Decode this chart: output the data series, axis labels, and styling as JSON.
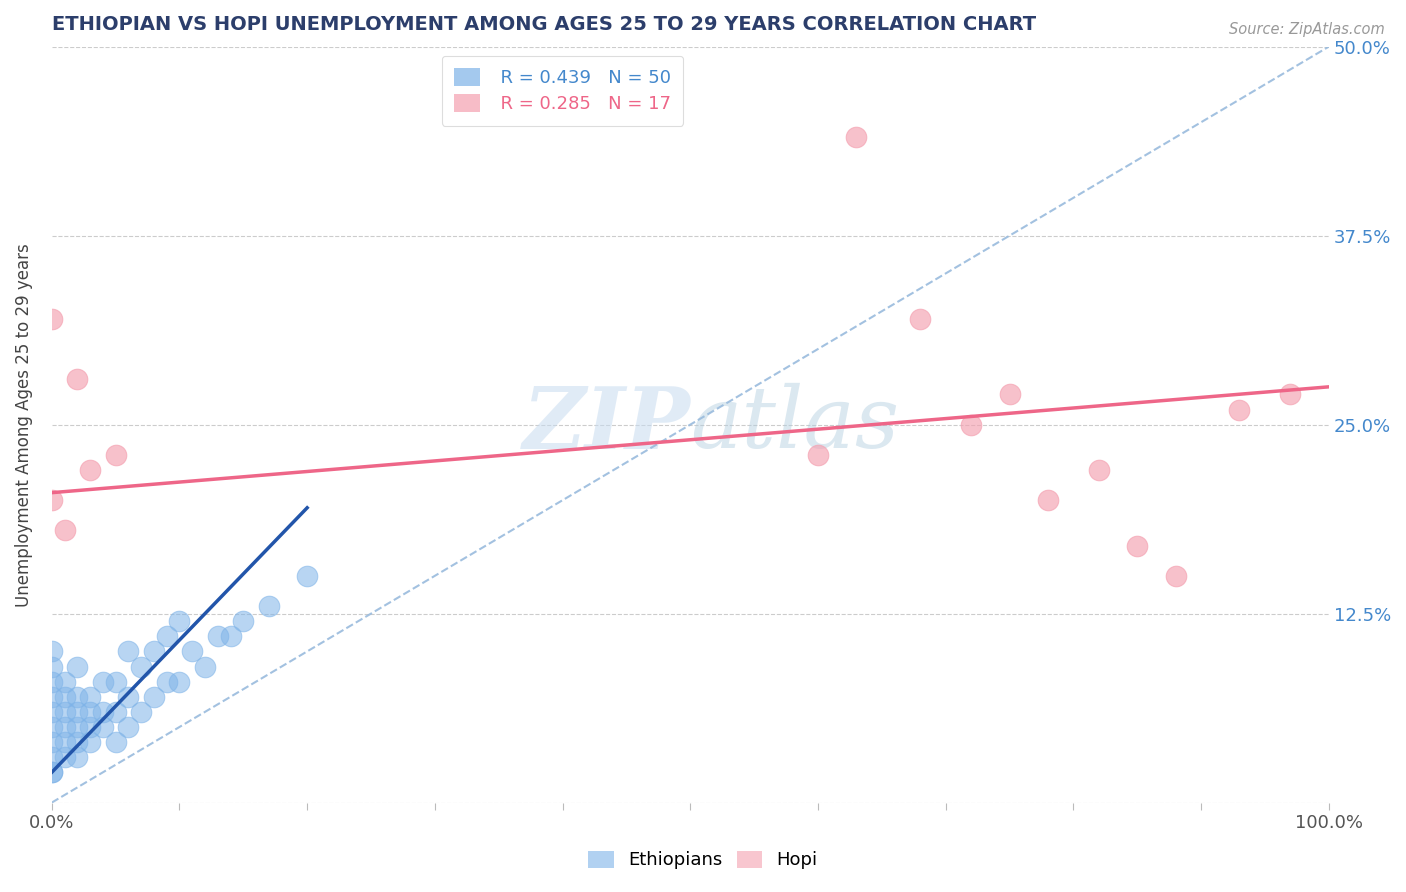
{
  "title": "ETHIOPIAN VS HOPI UNEMPLOYMENT AMONG AGES 25 TO 29 YEARS CORRELATION CHART",
  "source": "Source: ZipAtlas.com",
  "ylabel": "Unemployment Among Ages 25 to 29 years",
  "xlim": [
    0,
    1.0
  ],
  "ylim": [
    0,
    0.5
  ],
  "xticks": [
    0.0,
    0.1,
    0.2,
    0.3,
    0.4,
    0.5,
    0.6,
    0.7,
    0.8,
    0.9,
    1.0
  ],
  "xticklabels": [
    "0.0%",
    "",
    "",
    "",
    "",
    "",
    "",
    "",
    "",
    "",
    "100.0%"
  ],
  "yticks_right": [
    0.0,
    0.125,
    0.25,
    0.375,
    0.5
  ],
  "yticklabels_right": [
    "",
    "12.5%",
    "25.0%",
    "37.5%",
    "50.0%"
  ],
  "legend_r_ethiopians": "R = 0.439",
  "legend_n_ethiopians": "N = 50",
  "legend_r_hopi": "R = 0.285",
  "legend_n_hopi": "N = 17",
  "ethiopians_color": "#7EB3E8",
  "hopi_color": "#F4A0B0",
  "blue_line_color": "#2255AA",
  "pink_line_color": "#EE6688",
  "dashed_line_color": "#99BBDD",
  "background_color": "#FFFFFF",
  "watermark_color": "#D8E8F0",
  "ethiopians_x": [
    0.0,
    0.0,
    0.0,
    0.0,
    0.0,
    0.0,
    0.0,
    0.0,
    0.0,
    0.0,
    0.01,
    0.01,
    0.01,
    0.01,
    0.01,
    0.01,
    0.02,
    0.02,
    0.02,
    0.02,
    0.02,
    0.02,
    0.03,
    0.03,
    0.03,
    0.03,
    0.04,
    0.04,
    0.04,
    0.05,
    0.05,
    0.05,
    0.06,
    0.06,
    0.06,
    0.07,
    0.07,
    0.08,
    0.08,
    0.09,
    0.09,
    0.1,
    0.1,
    0.11,
    0.12,
    0.13,
    0.14,
    0.15,
    0.17,
    0.2
  ],
  "ethiopians_y": [
    0.02,
    0.03,
    0.04,
    0.05,
    0.06,
    0.07,
    0.08,
    0.09,
    0.1,
    0.02,
    0.03,
    0.04,
    0.05,
    0.06,
    0.07,
    0.08,
    0.03,
    0.04,
    0.05,
    0.06,
    0.07,
    0.09,
    0.04,
    0.05,
    0.06,
    0.07,
    0.05,
    0.06,
    0.08,
    0.04,
    0.06,
    0.08,
    0.05,
    0.07,
    0.1,
    0.06,
    0.09,
    0.07,
    0.1,
    0.08,
    0.11,
    0.08,
    0.12,
    0.1,
    0.09,
    0.11,
    0.11,
    0.12,
    0.13,
    0.15
  ],
  "hopi_x": [
    0.0,
    0.0,
    0.01,
    0.02,
    0.03,
    0.05,
    0.6,
    0.63,
    0.68,
    0.72,
    0.75,
    0.78,
    0.82,
    0.85,
    0.88,
    0.93,
    0.97
  ],
  "hopi_y": [
    0.2,
    0.32,
    0.18,
    0.28,
    0.22,
    0.23,
    0.23,
    0.44,
    0.32,
    0.25,
    0.27,
    0.2,
    0.22,
    0.17,
    0.15,
    0.26,
    0.27
  ],
  "hopi_trend_x0": 0.0,
  "hopi_trend_y0": 0.205,
  "hopi_trend_x1": 1.0,
  "hopi_trend_y1": 0.275,
  "eth_trend_x0": 0.0,
  "eth_trend_y0": 0.02,
  "eth_trend_x1": 0.2,
  "eth_trend_y1": 0.195
}
